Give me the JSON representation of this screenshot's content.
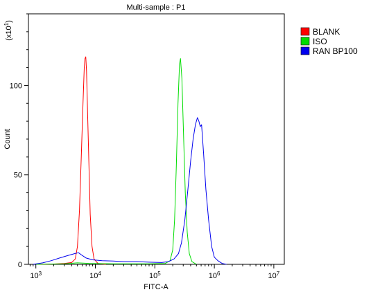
{
  "chart_data": {
    "type": "line",
    "title": "Multi-sample : P1",
    "xlabel": "FITC-A",
    "ylabel": "Count",
    "y_multiplier_label": "(x10",
    "y_multiplier_exp": "1",
    "y_multiplier_close": ")",
    "x_scale": "log",
    "xlim": [
      750,
      15000000
    ],
    "ylim": [
      0,
      140
    ],
    "x_ticks": [
      {
        "value": 1000,
        "base": "10",
        "exp": "3"
      },
      {
        "value": 10000,
        "base": "10",
        "exp": "4"
      },
      {
        "value": 100000,
        "base": "10",
        "exp": "5"
      },
      {
        "value": 1000000,
        "base": "10",
        "exp": "6"
      },
      {
        "value": 10000000,
        "base": "10",
        "exp": "7"
      }
    ],
    "y_ticks": [
      {
        "value": 0,
        "label": "0"
      },
      {
        "value": 50,
        "label": "50"
      },
      {
        "value": 100,
        "label": "100"
      }
    ],
    "legend_position": "top-right",
    "series": [
      {
        "name": "BLANK",
        "color": "#ff0000",
        "points": [
          [
            1000,
            0
          ],
          [
            2000,
            0.2
          ],
          [
            3000,
            0.5
          ],
          [
            4000,
            1
          ],
          [
            4600,
            3
          ],
          [
            5000,
            10
          ],
          [
            5400,
            30
          ],
          [
            5800,
            60
          ],
          [
            6200,
            90
          ],
          [
            6500,
            110
          ],
          [
            6700,
            115
          ],
          [
            6900,
            116
          ],
          [
            7100,
            108
          ],
          [
            7400,
            85
          ],
          [
            7800,
            55
          ],
          [
            8200,
            28
          ],
          [
            8800,
            10
          ],
          [
            9500,
            3
          ],
          [
            11000,
            0.5
          ],
          [
            15000,
            0
          ]
        ]
      },
      {
        "name": "ISO",
        "color": "#00dd00",
        "points": [
          [
            1000,
            0
          ],
          [
            3000,
            0.3
          ],
          [
            5000,
            0.8
          ],
          [
            8000,
            0.5
          ],
          [
            20000,
            0.3
          ],
          [
            80000,
            0.3
          ],
          [
            150000,
            0.5
          ],
          [
            180000,
            2
          ],
          [
            200000,
            8
          ],
          [
            215000,
            25
          ],
          [
            230000,
            55
          ],
          [
            245000,
            90
          ],
          [
            260000,
            112
          ],
          [
            270000,
            115
          ],
          [
            285000,
            104
          ],
          [
            305000,
            70
          ],
          [
            325000,
            40
          ],
          [
            350000,
            18
          ],
          [
            380000,
            6
          ],
          [
            420000,
            1.5
          ],
          [
            500000,
            0
          ]
        ]
      },
      {
        "name": "RAN BP100",
        "color": "#0000ee",
        "points": [
          [
            900,
            0
          ],
          [
            1300,
            0.8
          ],
          [
            1800,
            2
          ],
          [
            2500,
            3.5
          ],
          [
            3500,
            5
          ],
          [
            4500,
            6
          ],
          [
            5200,
            6.5
          ],
          [
            6000,
            5
          ],
          [
            7000,
            3.5
          ],
          [
            9000,
            2.5
          ],
          [
            13000,
            2
          ],
          [
            20000,
            1.8
          ],
          [
            30000,
            1.5
          ],
          [
            50000,
            1.5
          ],
          [
            80000,
            1.2
          ],
          [
            130000,
            1
          ],
          [
            170000,
            1.5
          ],
          [
            210000,
            3
          ],
          [
            250000,
            6
          ],
          [
            280000,
            12
          ],
          [
            320000,
            25
          ],
          [
            360000,
            42
          ],
          [
            400000,
            58
          ],
          [
            440000,
            70
          ],
          [
            480000,
            78
          ],
          [
            520000,
            82
          ],
          [
            550000,
            80
          ],
          [
            580000,
            77
          ],
          [
            610000,
            78
          ],
          [
            660000,
            62
          ],
          [
            720000,
            42
          ],
          [
            800000,
            25
          ],
          [
            900000,
            10
          ],
          [
            1000000,
            4
          ],
          [
            1150000,
            2
          ],
          [
            1350000,
            0.5
          ],
          [
            1600000,
            0
          ]
        ]
      }
    ]
  }
}
